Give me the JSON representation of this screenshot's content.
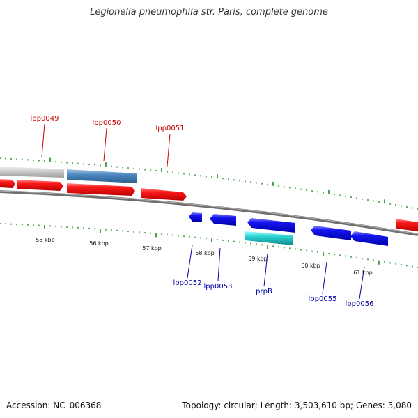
{
  "title": "Legionella pneumophila str. Paris, complete genome",
  "footer": {
    "accession": "Accession: NC_006368",
    "topology": "Topology: circular",
    "length": "Length: 3,503,610 bp",
    "genes": "Genes: 3,080"
  },
  "scale": {
    "unit": "kbp",
    "labels": [
      "55 kbp",
      "56 kbp",
      "57 kbp",
      "58 kbp",
      "59 kbp",
      "60 kbp",
      "61 kbp"
    ],
    "tick_color": "#228b22"
  },
  "colors": {
    "forward_gene": "#ff0000",
    "reverse_gene": "#0000ee",
    "highlight_gene": "#4682b4",
    "rna_gene": "#20c0c0",
    "grey_gene": "#c0c0c0",
    "backbone": "#808080",
    "forward_label": "#cc0000",
    "reverse_label": "#0000aa"
  },
  "genes": {
    "forward_labels": [
      "lpp0049",
      "lpp0050",
      "lpp0051"
    ],
    "reverse_labels": [
      "lpp0052",
      "lpp0053",
      "prpB",
      "lpp0055",
      "lpp0056"
    ]
  }
}
